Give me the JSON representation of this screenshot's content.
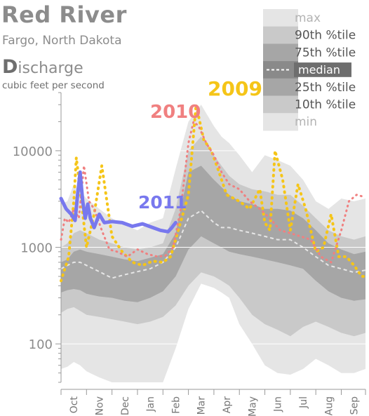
{
  "header": {
    "title": "Red River",
    "subtitle": "Fargo, North Dakota",
    "metric_first": "D",
    "metric_rest": "ischarge",
    "units": "cubic feet per second"
  },
  "colors": {
    "band_min_max": "#e5e5e5",
    "band_10_90": "#c9c9c9",
    "band_25_75": "#a6a6a6",
    "median": "#e6e6e6",
    "y2009": "#f5c518",
    "y2010": "#f08080",
    "y2011": "#7878ee"
  },
  "chart_data": {
    "type": "area",
    "title": "Red River",
    "ylabel": "cubic feet per second",
    "yscale": "log",
    "ylim": [
      40,
      40000
    ],
    "yticks": [
      100,
      1000,
      10000
    ],
    "ytick_labels": [
      "100",
      "1000",
      "10000"
    ],
    "xlim": [
      0,
      11.95
    ],
    "xticks": [
      "Oct",
      "Nov",
      "Dec",
      "Jan",
      "Feb",
      "Mar",
      "Apr",
      "May",
      "Jun",
      "Jul",
      "Aug",
      "Sep"
    ],
    "grid": true,
    "legend_position": "top-right",
    "x": [
      0,
      0.25,
      0.5,
      0.75,
      1,
      1.5,
      2,
      2.5,
      3,
      3.5,
      4,
      4.5,
      5,
      5.5,
      6,
      6.3,
      6.6,
      7,
      7.5,
      8,
      8.5,
      9,
      9.5,
      10,
      10.5,
      11,
      11.5,
      11.95
    ],
    "stats": [
      {
        "name": "max",
        "values": [
          2800,
          3000,
          4500,
          3800,
          3200,
          2500,
          2000,
          1700,
          1500,
          1800,
          2000,
          6500,
          20000,
          30000,
          18000,
          14000,
          12000,
          9000,
          6000,
          9000,
          8000,
          7000,
          5000,
          3000,
          2500,
          3200,
          3000,
          3200
        ]
      },
      {
        "name": "90th %tile",
        "values": [
          1000,
          1100,
          1400,
          1500,
          1400,
          1200,
          1100,
          1000,
          950,
          1000,
          1100,
          2500,
          10000,
          14000,
          9000,
          7000,
          5500,
          4500,
          4000,
          3800,
          3500,
          3500,
          2700,
          2000,
          1500,
          1300,
          1200,
          1300
        ]
      },
      {
        "name": "75th %tile",
        "values": [
          700,
          750,
          900,
          950,
          900,
          850,
          800,
          750,
          720,
          780,
          850,
          1400,
          6000,
          7000,
          5000,
          4200,
          3500,
          3000,
          2800,
          2500,
          2500,
          2400,
          2000,
          1500,
          1100,
          950,
          850,
          900
        ]
      },
      {
        "name": "median",
        "values": [
          600,
          650,
          700,
          700,
          650,
          560,
          480,
          520,
          560,
          600,
          700,
          1000,
          2000,
          2400,
          1800,
          1600,
          1600,
          1500,
          1400,
          1300,
          1200,
          1200,
          1000,
          800,
          650,
          600,
          550,
          580
        ]
      },
      {
        "name": "25th %tile",
        "values": [
          340,
          360,
          370,
          360,
          330,
          310,
          300,
          280,
          270,
          300,
          350,
          500,
          950,
          1300,
          1100,
          1000,
          900,
          850,
          800,
          750,
          700,
          650,
          600,
          450,
          350,
          300,
          280,
          290
        ]
      },
      {
        "name": "10th %tile",
        "values": [
          210,
          230,
          240,
          220,
          200,
          190,
          180,
          170,
          160,
          170,
          190,
          250,
          400,
          550,
          500,
          450,
          400,
          300,
          200,
          160,
          140,
          120,
          150,
          170,
          150,
          130,
          120,
          130
        ]
      },
      {
        "name": "min",
        "values": [
          55,
          58,
          65,
          60,
          52,
          45,
          40,
          40,
          40,
          40,
          40,
          90,
          230,
          420,
          380,
          340,
          300,
          160,
          100,
          60,
          50,
          48,
          55,
          70,
          60,
          50,
          50,
          55
        ]
      }
    ],
    "series": [
      {
        "name": "2009",
        "x": [
          0,
          0.3,
          0.5,
          0.6,
          0.8,
          1.0,
          1.3,
          1.6,
          2.0,
          2.4,
          2.8,
          3.2,
          3.6,
          4.0,
          4.3,
          4.6,
          5.0,
          5.3,
          5.6,
          5.9,
          6.2,
          6.5,
          7.0,
          7.4,
          7.8,
          8.0,
          8.2,
          8.4,
          8.7,
          9.0,
          9.3,
          9.6,
          10.0,
          10.3,
          10.6,
          10.9,
          11.2,
          11.5,
          11.8,
          11.95
        ],
        "values": [
          450,
          800,
          3000,
          8500,
          3000,
          1000,
          2200,
          7000,
          1300,
          900,
          700,
          650,
          720,
          700,
          800,
          1500,
          3500,
          30000,
          13000,
          10000,
          6000,
          3500,
          3000,
          2500,
          4000,
          1800,
          1500,
          10000,
          5000,
          1500,
          4500,
          2500,
          900,
          1000,
          2200,
          800,
          800,
          650,
          500,
          500
        ]
      },
      {
        "name": "2010",
        "x": [
          0,
          0.15,
          0.3,
          0.5,
          0.7,
          0.9,
          1.1,
          1.3,
          1.6,
          1.9,
          2.2,
          2.6,
          3.0,
          3.4,
          3.8,
          4.1,
          4.4,
          4.7,
          5.0,
          5.2,
          5.4,
          5.7,
          6.0,
          6.3,
          6.6,
          7.0,
          7.4,
          7.8,
          8.2,
          8.6,
          9.0,
          9.4,
          9.8,
          10.2,
          10.6,
          11.0,
          11.3,
          11.6,
          11.95
        ],
        "values": [
          1200,
          2000,
          1800,
          2500,
          2000,
          7000,
          3000,
          2500,
          1500,
          950,
          900,
          800,
          950,
          850,
          800,
          820,
          1000,
          2500,
          12000,
          20000,
          18000,
          12000,
          9000,
          6000,
          4500,
          4000,
          3000,
          2500,
          2000,
          1500,
          1400,
          1300,
          1200,
          800,
          700,
          1500,
          3000,
          3500,
          3300
        ]
      },
      {
        "name": "2011",
        "x": [
          0,
          0.2,
          0.4,
          0.55,
          0.65,
          0.75,
          0.85,
          0.95,
          1.05,
          1.15,
          1.3,
          1.5,
          1.7,
          2.0,
          2.4,
          2.8,
          3.2,
          3.6,
          3.9,
          4.2,
          4.35,
          4.5
        ],
        "values": [
          3200,
          2500,
          2200,
          1900,
          3500,
          6000,
          3000,
          2000,
          2800,
          2000,
          1600,
          2200,
          1800,
          1850,
          1800,
          1650,
          1750,
          1600,
          1500,
          1450,
          1600,
          1800
        ]
      }
    ]
  },
  "legend": [
    "max",
    "90th %tile",
    "75th %tile",
    "median",
    "25th %tile",
    "10th %tile",
    "min"
  ]
}
